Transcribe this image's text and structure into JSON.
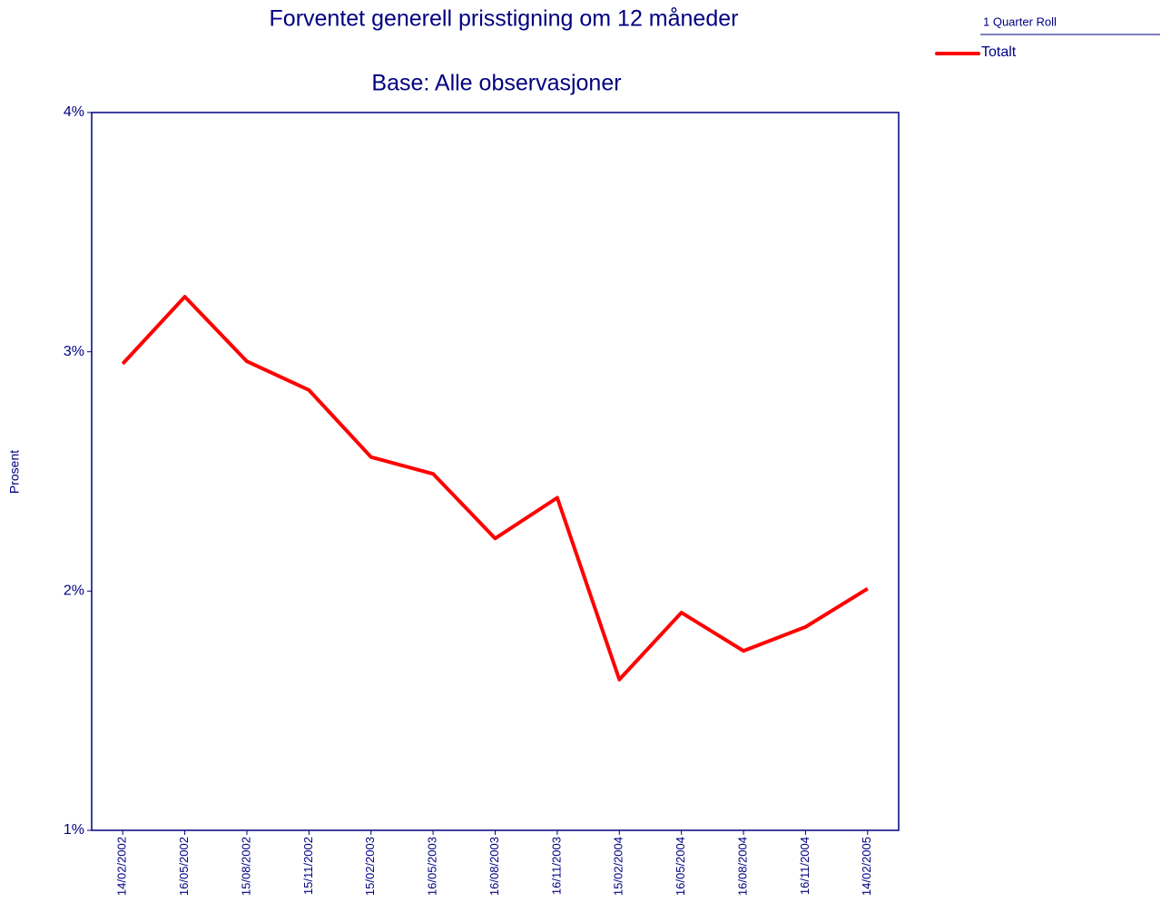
{
  "chart_data": {
    "type": "line",
    "title": "Forventet generell prisstigning om 12 måneder",
    "subtitle": "Base: Alle observasjoner",
    "y_label": "Prosent",
    "legend_title": "1 Quarter Roll",
    "categories": [
      "14/02/2002",
      "16/05/2002",
      "15/08/2002",
      "15/11/2002",
      "15/02/2003",
      "16/05/2003",
      "16/08/2003",
      "16/11/2003",
      "15/02/2004",
      "16/05/2004",
      "16/08/2004",
      "16/11/2004",
      "14/02/2005"
    ],
    "series": [
      {
        "name": "Totalt",
        "color": "#ff0000",
        "values": [
          2.95,
          3.23,
          2.96,
          2.84,
          2.56,
          2.49,
          2.22,
          2.39,
          1.63,
          1.91,
          1.75,
          1.85,
          2.01
        ]
      }
    ],
    "ylim": [
      1,
      4
    ],
    "yticks": [
      {
        "value": 1,
        "label": "1%"
      },
      {
        "value": 2,
        "label": "2%"
      },
      {
        "value": 3,
        "label": "3%"
      },
      {
        "value": 4,
        "label": "4%"
      }
    ]
  }
}
